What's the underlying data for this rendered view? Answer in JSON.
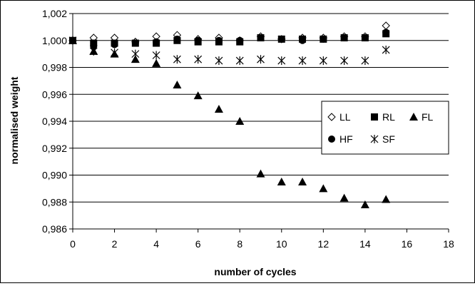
{
  "chart_data": {
    "type": "scatter",
    "xlabel": "number of cycles",
    "ylabel": "normalised weight",
    "xlim": [
      0,
      18
    ],
    "ylim": [
      0.986,
      1.002
    ],
    "x_ticks": [
      "0",
      "2",
      "4",
      "6",
      "8",
      "10",
      "12",
      "14",
      "16",
      "18"
    ],
    "y_ticks": [
      "0,986",
      "0,988",
      "0,990",
      "0,992",
      "0,994",
      "0,996",
      "0,998",
      "1,000",
      "1,002"
    ],
    "grid": "horizontal",
    "legend_position": "right-middle",
    "series": [
      {
        "name": "LL",
        "marker": "diamond-open",
        "x": [
          0,
          1,
          2,
          3,
          4,
          5,
          6,
          7,
          8,
          9,
          10,
          11,
          12,
          13,
          14,
          15
        ],
        "y": [
          1.0,
          1.0002,
          1.0002,
          0.9999,
          1.0003,
          1.0004,
          1.0001,
          1.0002,
          1.0,
          1.0003,
          1.0001,
          1.0002,
          1.0002,
          1.0003,
          1.0003,
          1.0011
        ]
      },
      {
        "name": "RL",
        "marker": "square-filled",
        "x": [
          0,
          1,
          2,
          3,
          4,
          5,
          6,
          7,
          8,
          9,
          10,
          11,
          12,
          13,
          14,
          15
        ],
        "y": [
          1.0,
          0.9998,
          0.9998,
          0.9998,
          0.9998,
          1.0,
          0.9999,
          0.9999,
          0.9999,
          1.0002,
          1.0001,
          1.0001,
          1.0001,
          1.0002,
          1.0002,
          1.0005
        ]
      },
      {
        "name": "FL",
        "marker": "triangle-filled",
        "x": [
          0,
          1,
          2,
          3,
          4,
          5,
          6,
          7,
          8,
          9,
          10,
          11,
          12,
          13,
          14,
          15
        ],
        "y": [
          1.0,
          0.9992,
          0.999,
          0.9986,
          0.9983,
          0.9967,
          0.9959,
          0.9949,
          0.994,
          0.9901,
          0.9895,
          0.9895,
          0.989,
          0.9883,
          0.9878,
          0.9882
        ]
      },
      {
        "name": "HF",
        "marker": "circle-filled",
        "x": [
          0,
          1,
          2,
          3,
          4,
          5,
          6,
          7,
          8,
          9,
          10,
          11,
          12,
          13,
          14,
          15
        ],
        "y": [
          1.0,
          0.9996,
          0.9997,
          0.9998,
          0.9999,
          1.0001,
          1.0,
          1.0,
          1.0,
          1.0002,
          1.0001,
          1.0,
          1.0001,
          1.0002,
          1.0002,
          1.0006
        ]
      },
      {
        "name": "SF",
        "marker": "asterisk",
        "x": [
          0,
          1,
          2,
          3,
          4,
          5,
          6,
          7,
          8,
          9,
          10,
          11,
          12,
          13,
          14,
          15
        ],
        "y": [
          1.0,
          0.9992,
          0.9991,
          0.999,
          0.9989,
          0.9986,
          0.9986,
          0.9985,
          0.9985,
          0.9986,
          0.9985,
          0.9985,
          0.9985,
          0.9985,
          0.9985,
          0.9993
        ]
      }
    ]
  },
  "colors": {
    "marker": "#000000",
    "grid": "#000000",
    "background": "#ffffff"
  }
}
